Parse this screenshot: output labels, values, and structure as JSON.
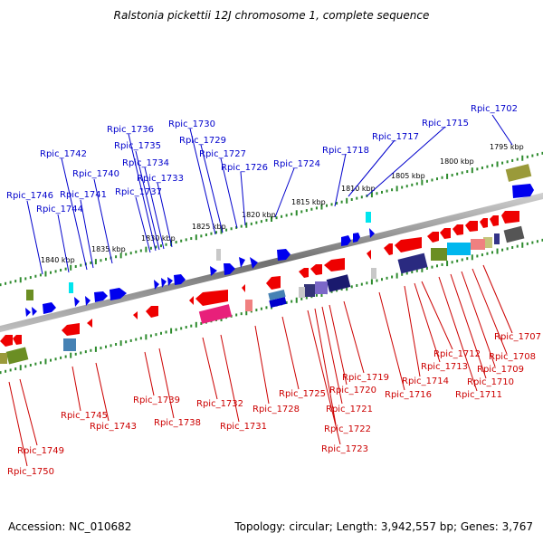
{
  "title": "Ralstonia pickettii 12J chromosome 1, complete sequence",
  "footer": {
    "accession": "Accession: NC_010682",
    "topology": "Topology: circular; Length: 3,942,557 bp; Genes: 3,767"
  },
  "kbp_labels": [
    "1795 kbp",
    "1800 kbp",
    "1805 kbp",
    "1810 kbp",
    "1815 kbp",
    "1820 kbp",
    "1825 kbp",
    "1830 kbp",
    "1835 kbp",
    "1840 kbp"
  ],
  "top_labels": [
    "Rpic_1702",
    "Rpic_1715",
    "Rpic_1717",
    "Rpic_1718",
    "Rpic_1724",
    "Rpic_1726",
    "Rpic_1727",
    "Rpic_1729",
    "Rpic_1730",
    "Rpic_1733",
    "Rpic_1734",
    "Rpic_1735",
    "Rpic_1736",
    "Rpic_1737",
    "Rpic_1740",
    "Rpic_1741",
    "Rpic_1742",
    "Rpic_1744",
    "Rpic_1746"
  ],
  "bottom_labels": [
    "Rpic_1707",
    "Rpic_1708",
    "Rpic_1709",
    "Rpic_1710",
    "Rpic_1711",
    "Rpic_1712",
    "Rpic_1713",
    "Rpic_1714",
    "Rpic_1716",
    "Rpic_1719",
    "Rpic_1720",
    "Rpic_1721",
    "Rpic_1722",
    "Rpic_1723",
    "Rpic_1725",
    "Rpic_1728",
    "Rpic_1731",
    "Rpic_1732",
    "Rpic_1738",
    "Rpic_1739",
    "Rpic_1743",
    "Rpic_1745",
    "Rpic_1749",
    "Rpic_1750"
  ],
  "colors": {
    "forward_label": "#0000cc",
    "reverse_label": "#cc0000",
    "forward_gene": "#0000ee",
    "reverse_gene": "#ee0000",
    "backbone": "#888888",
    "tick": "#2e8b2e"
  }
}
